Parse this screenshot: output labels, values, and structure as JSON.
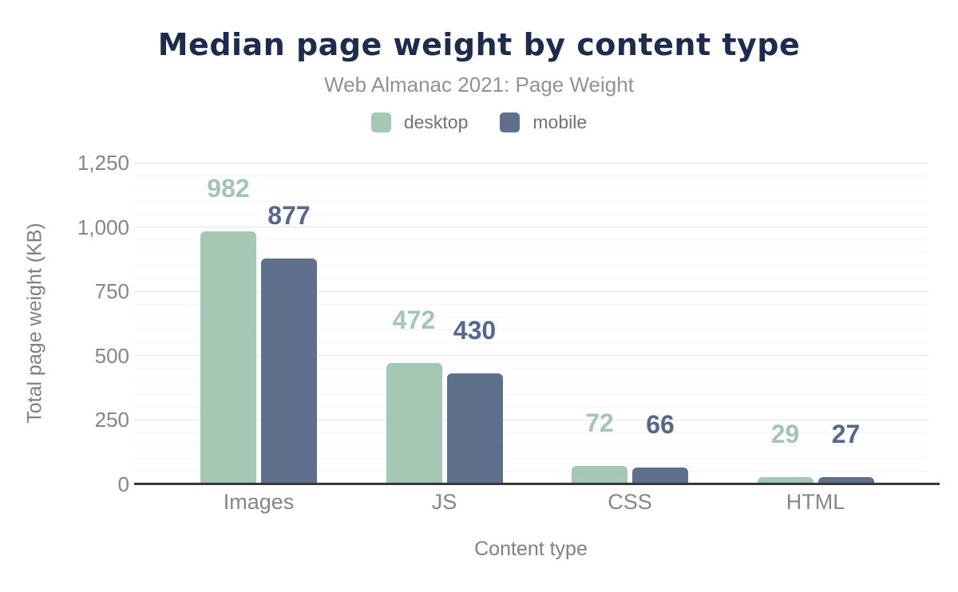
{
  "chart_data": {
    "type": "bar",
    "title": "Median page weight by content type",
    "subtitle": "Web Almanac 2021: Page Weight",
    "xlabel": "Content type",
    "ylabel": "Total page weight (KB)",
    "categories": [
      "Images",
      "JS",
      "CSS",
      "HTML"
    ],
    "series": [
      {
        "name": "desktop",
        "color": "#a5c8b5",
        "label_color": "#a3c6b2",
        "values": [
          982,
          472,
          72,
          29
        ]
      },
      {
        "name": "mobile",
        "color": "#5f708c",
        "label_color": "#55688c",
        "values": [
          877,
          430,
          66,
          27
        ]
      }
    ],
    "ylim": [
      0,
      1250
    ],
    "y_ticks": [
      {
        "value": 0,
        "label": "0"
      },
      {
        "value": 250,
        "label": "250"
      },
      {
        "value": 500,
        "label": "500"
      },
      {
        "value": 750,
        "label": "750"
      },
      {
        "value": 1000,
        "label": "1,000"
      },
      {
        "value": 1250,
        "label": "1,250"
      }
    ],
    "y_minor_step": 50,
    "grid": "horizontal major+minor",
    "legend_position": "top",
    "bar_value_labels": true,
    "colors": {
      "background": "#ffffff",
      "title": "#1d2c4e",
      "subtitle": "#8e929a",
      "axis_text": "#7c8187",
      "tick_text": "#82868d",
      "legend_text": "#6e737a",
      "axis_line": "#383838",
      "grid_major": "#e5e5e5",
      "grid_minor": "#f4f4f4"
    }
  }
}
